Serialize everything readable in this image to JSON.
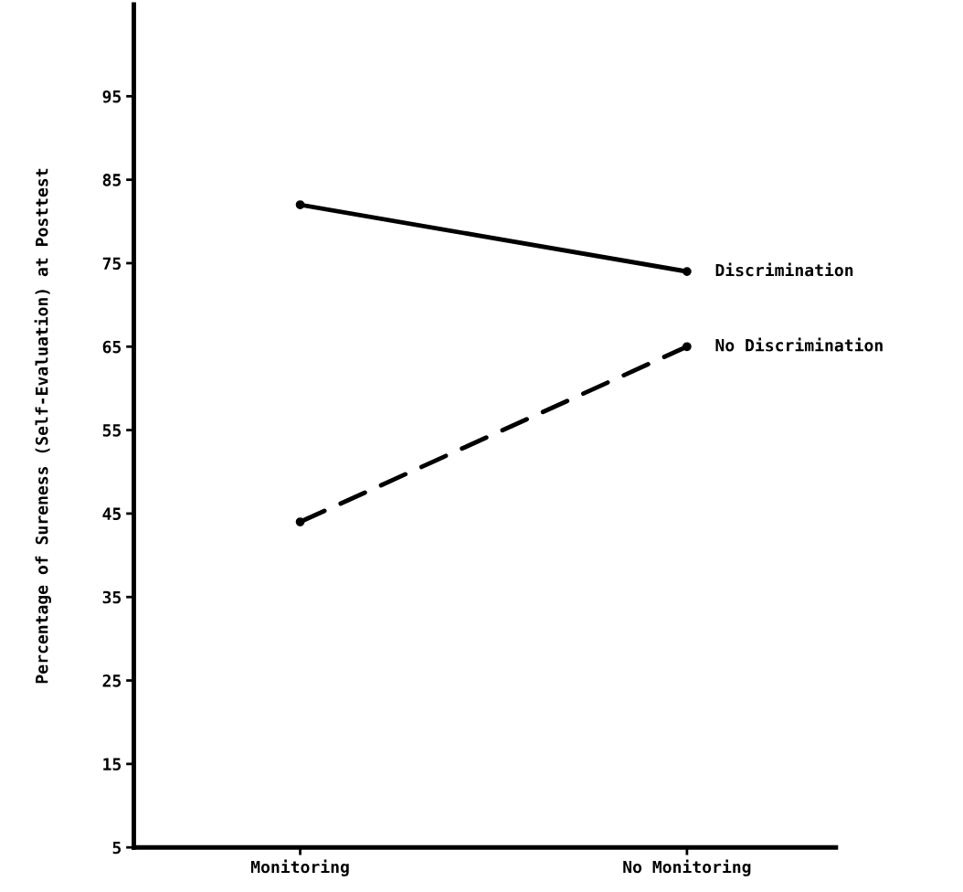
{
  "chart_data": {
    "type": "line",
    "ylabel": "Percentage of Sureness (Self-Evaluation) at Posttest",
    "categories": [
      "Monitoring",
      "No Monitoring"
    ],
    "series": [
      {
        "name": "Discrimination",
        "color": "#000000",
        "values": [
          82,
          74
        ],
        "line_style": "solid"
      },
      {
        "name": "No Discrimination",
        "color": "#000000",
        "values": [
          44,
          65
        ],
        "line_style": "dashed"
      }
    ],
    "ylim": [
      5,
      106
    ],
    "yticks": [
      5,
      15,
      25,
      35,
      45,
      55,
      65,
      75,
      85,
      95
    ],
    "grid": false,
    "legend": false,
    "marker": "circle"
  }
}
